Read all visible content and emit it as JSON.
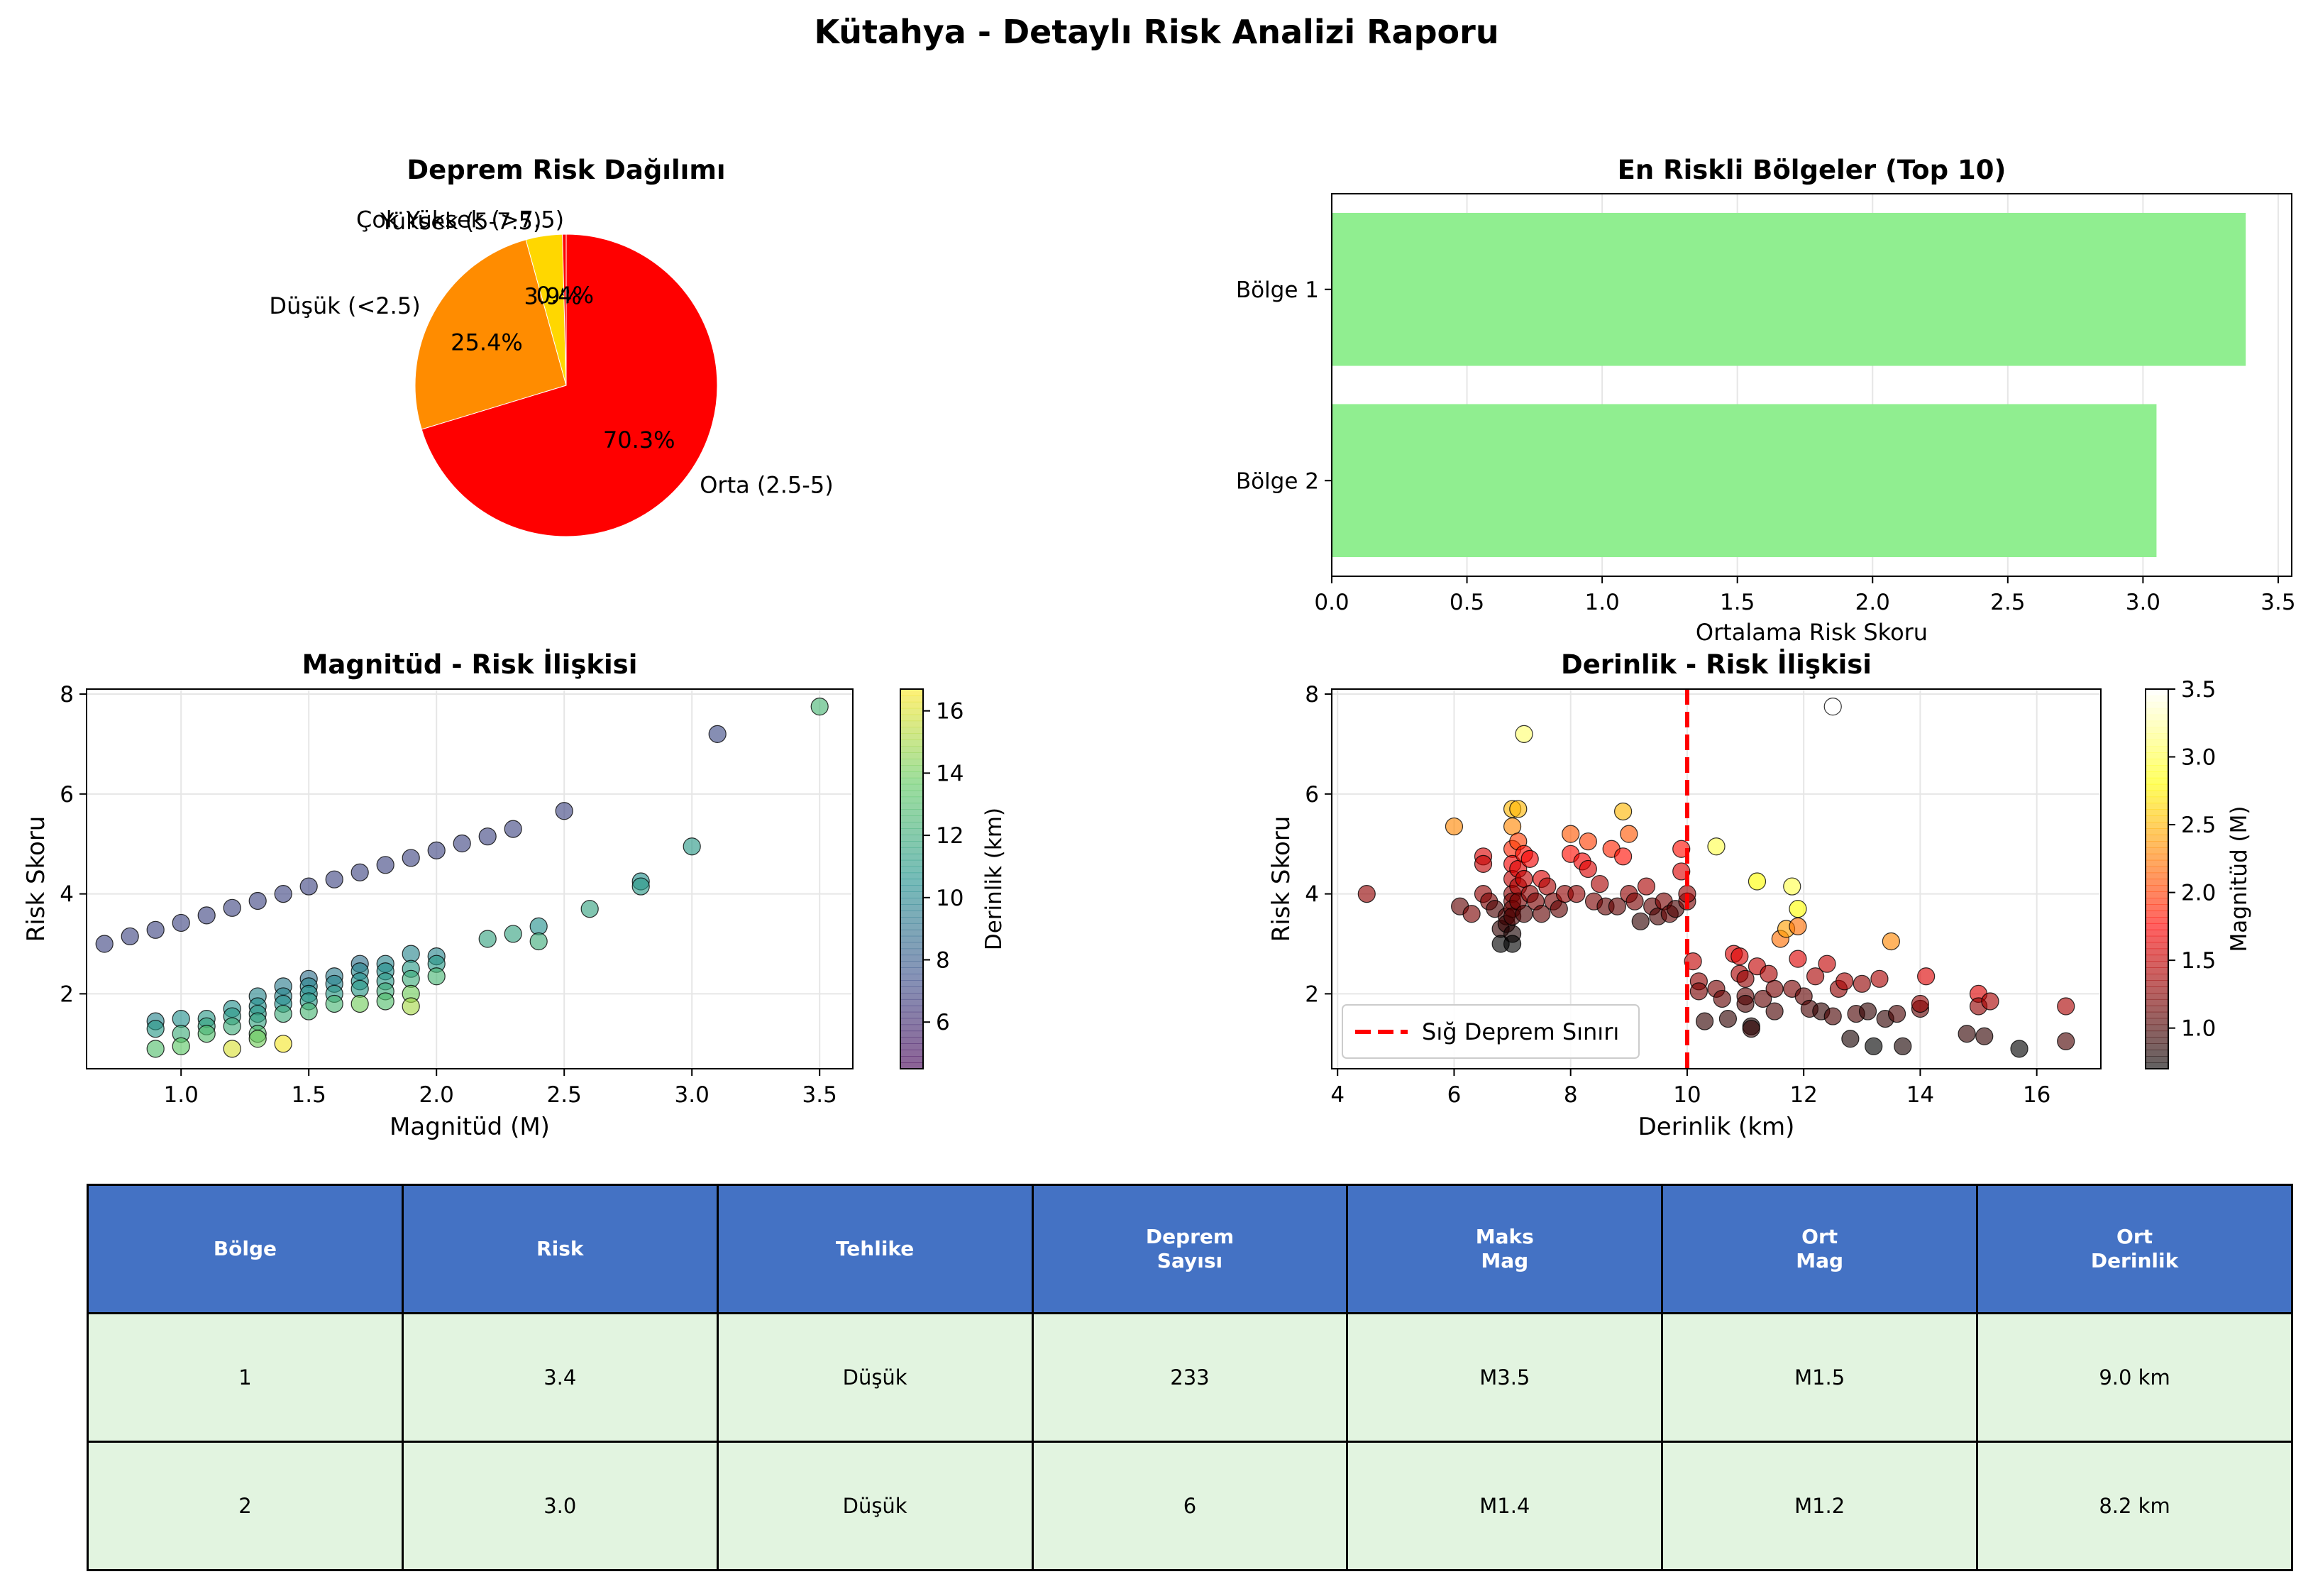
{
  "page": {
    "title": "Kütahya - Detaylı Risk Analizi Raporu"
  },
  "colors": {
    "pie": [
      "#ff0000",
      "#ff8c00",
      "#ffd700",
      "#ff0000"
    ],
    "bar": "#90ee90",
    "header": "#4472c4",
    "row": "#e2f4e0",
    "threshold": "#ff0000"
  },
  "chart_data": [
    {
      "type": "pie",
      "title": "Deprem Risk Dağılımı",
      "labels": [
        "Orta (2.5-5)",
        "Düşük (<2.5)",
        "Yüksek (5-7.5)",
        "Çok Yüksek (>7.5)"
      ],
      "values": [
        70.3,
        25.4,
        3.9,
        0.4
      ],
      "autopct": [
        "70.3%",
        "25.4%",
        "3.9%",
        "0.4%"
      ]
    },
    {
      "type": "bar",
      "orientation": "horizontal",
      "title": "En Riskli Bölgeler (Top 10)",
      "categories": [
        "Bölge 1",
        "Bölge 2"
      ],
      "values": [
        3.38,
        3.05
      ],
      "xlabel": "Ortalama Risk Skoru",
      "xlim": [
        0,
        3.55
      ],
      "xticks": [
        "0.0",
        "0.5",
        "1.0",
        "1.5",
        "2.0",
        "2.5",
        "3.0",
        "3.5"
      ],
      "grid": true
    },
    {
      "type": "scatter",
      "title": "Magnitüd - Risk İlişkisi",
      "xlabel": "Magnitüd (M)",
      "ylabel": "Risk Skoru",
      "xlim": [
        0.63,
        3.63
      ],
      "ylim": [
        0.5,
        8.1
      ],
      "xticks": [
        "1.0",
        "1.5",
        "2.0",
        "2.5",
        "3.0",
        "3.5"
      ],
      "yticks": [
        "2",
        "4",
        "6",
        "8"
      ],
      "colorbar": {
        "label": "Derinlik (km)",
        "min": 4.5,
        "max": 16.7,
        "ticks": [
          "6",
          "8",
          "10",
          "12",
          "14",
          "16"
        ],
        "colormap": "viridis"
      },
      "points": [
        [
          0.7,
          3.0,
          7
        ],
        [
          0.8,
          3.15,
          7
        ],
        [
          0.9,
          3.28,
          7
        ],
        [
          1.0,
          3.42,
          7
        ],
        [
          1.1,
          3.57,
          7
        ],
        [
          1.2,
          3.72,
          7
        ],
        [
          1.3,
          3.86,
          7
        ],
        [
          1.4,
          4.0,
          7
        ],
        [
          1.5,
          4.15,
          7
        ],
        [
          1.6,
          4.29,
          7
        ],
        [
          1.7,
          4.43,
          7
        ],
        [
          1.8,
          4.58,
          7
        ],
        [
          1.9,
          4.72,
          7
        ],
        [
          2.0,
          4.87,
          7
        ],
        [
          2.1,
          5.01,
          7
        ],
        [
          2.2,
          5.15,
          7
        ],
        [
          2.3,
          5.3,
          7
        ],
        [
          2.5,
          5.66,
          7
        ],
        [
          3.1,
          7.2,
          7.2
        ],
        [
          3.5,
          7.75,
          12.5
        ],
        [
          0.9,
          1.45,
          10
        ],
        [
          0.9,
          1.3,
          11
        ],
        [
          0.9,
          0.9,
          13
        ],
        [
          1.0,
          1.5,
          10.5
        ],
        [
          1.0,
          1.2,
          12
        ],
        [
          1.0,
          0.95,
          13.5
        ],
        [
          1.1,
          1.5,
          11
        ],
        [
          1.1,
          1.35,
          11.5
        ],
        [
          1.1,
          1.2,
          13
        ],
        [
          1.2,
          1.7,
          10.5
        ],
        [
          1.2,
          1.55,
          11
        ],
        [
          1.2,
          1.35,
          12
        ],
        [
          1.2,
          0.9,
          16
        ],
        [
          1.3,
          1.95,
          10
        ],
        [
          1.3,
          1.75,
          10.5
        ],
        [
          1.3,
          1.6,
          11
        ],
        [
          1.3,
          1.45,
          11.5
        ],
        [
          1.3,
          1.2,
          13
        ],
        [
          1.3,
          1.1,
          14
        ],
        [
          1.4,
          2.15,
          9.5
        ],
        [
          1.4,
          1.95,
          10
        ],
        [
          1.4,
          1.8,
          10.5
        ],
        [
          1.4,
          1.6,
          12
        ],
        [
          1.4,
          1.0,
          16.5
        ],
        [
          1.5,
          2.3,
          9
        ],
        [
          1.5,
          2.15,
          10
        ],
        [
          1.5,
          2.0,
          10.5
        ],
        [
          1.5,
          1.85,
          11
        ],
        [
          1.5,
          1.65,
          12.5
        ],
        [
          1.6,
          2.35,
          9.5
        ],
        [
          1.6,
          2.2,
          10
        ],
        [
          1.6,
          2.0,
          11
        ],
        [
          1.6,
          1.8,
          12.5
        ],
        [
          1.7,
          2.6,
          9
        ],
        [
          1.7,
          2.45,
          10
        ],
        [
          1.7,
          2.25,
          10.5
        ],
        [
          1.7,
          2.1,
          11
        ],
        [
          1.7,
          1.8,
          14
        ],
        [
          1.8,
          2.6,
          10
        ],
        [
          1.8,
          2.45,
          10.5
        ],
        [
          1.8,
          2.25,
          11
        ],
        [
          1.8,
          2.05,
          12
        ],
        [
          1.8,
          1.85,
          13
        ],
        [
          1.9,
          2.8,
          10
        ],
        [
          1.9,
          2.5,
          11
        ],
        [
          1.9,
          2.3,
          12
        ],
        [
          1.9,
          2.0,
          14
        ],
        [
          1.9,
          1.75,
          15
        ],
        [
          2.0,
          2.75,
          10
        ],
        [
          2.0,
          2.6,
          11
        ],
        [
          2.0,
          2.35,
          12.5
        ],
        [
          2.2,
          3.1,
          11.5
        ],
        [
          2.3,
          3.2,
          11.5
        ],
        [
          2.4,
          3.35,
          10.5
        ],
        [
          2.4,
          3.05,
          12
        ],
        [
          2.6,
          3.7,
          11.5
        ],
        [
          2.8,
          4.25,
          10.5
        ],
        [
          2.8,
          4.15,
          11
        ],
        [
          3.0,
          4.95,
          11
        ]
      ]
    },
    {
      "type": "scatter",
      "title": "Derinlik - Risk İlişkisi",
      "xlabel": "Derinlik (km)",
      "ylabel": "Risk Skoru",
      "xlim": [
        3.9,
        17.1
      ],
      "ylim": [
        0.5,
        8.1
      ],
      "xticks": [
        "4",
        "6",
        "8",
        "10",
        "12",
        "14",
        "16"
      ],
      "yticks": [
        "2",
        "4",
        "6",
        "8"
      ],
      "colorbar": {
        "label": "Magnitüd (M)",
        "min": 0.7,
        "max": 3.5,
        "ticks": [
          "1.0",
          "1.5",
          "2.0",
          "2.5",
          "3.0",
          "3.5"
        ],
        "colormap": "hot"
      },
      "threshold": {
        "x": 10,
        "label": "Sığ Deprem Sınırı"
      },
      "points": [
        [
          4.5,
          4.0,
          1.3
        ],
        [
          6.0,
          5.35,
          2.3
        ],
        [
          6.1,
          3.75,
          1.1
        ],
        [
          6.3,
          3.6,
          1.2
        ],
        [
          6.5,
          4.0,
          1.3
        ],
        [
          6.5,
          4.75,
          1.6
        ],
        [
          6.5,
          4.6,
          1.5
        ],
        [
          6.6,
          3.85,
          1.2
        ],
        [
          6.7,
          3.7,
          1.0
        ],
        [
          6.8,
          3.3,
          0.9
        ],
        [
          6.8,
          3.0,
          0.7
        ],
        [
          6.9,
          3.55,
          1.0
        ],
        [
          6.9,
          3.4,
          0.9
        ],
        [
          7.0,
          5.7,
          2.5
        ],
        [
          7.0,
          5.35,
          2.3
        ],
        [
          7.0,
          4.9,
          1.9
        ],
        [
          7.0,
          4.6,
          1.7
        ],
        [
          7.0,
          4.3,
          1.5
        ],
        [
          7.0,
          4.0,
          1.3
        ],
        [
          7.0,
          3.85,
          1.2
        ],
        [
          7.0,
          3.7,
          1.1
        ],
        [
          7.0,
          3.55,
          1.0
        ],
        [
          7.0,
          3.2,
          0.8
        ],
        [
          7.0,
          3.0,
          0.7
        ],
        [
          7.1,
          5.7,
          2.5
        ],
        [
          7.1,
          5.05,
          2.0
        ],
        [
          7.1,
          4.5,
          1.6
        ],
        [
          7.1,
          4.15,
          1.4
        ],
        [
          7.1,
          3.85,
          1.2
        ],
        [
          7.2,
          4.8,
          1.8
        ],
        [
          7.2,
          4.3,
          1.5
        ],
        [
          7.2,
          3.6,
          1.0
        ],
        [
          7.2,
          7.2,
          3.1
        ],
        [
          7.3,
          4.7,
          1.7
        ],
        [
          7.3,
          4.0,
          1.3
        ],
        [
          7.4,
          3.85,
          1.2
        ],
        [
          7.5,
          4.3,
          1.6
        ],
        [
          7.5,
          3.6,
          1.1
        ],
        [
          7.6,
          4.15,
          1.4
        ],
        [
          7.7,
          3.85,
          1.2
        ],
        [
          7.8,
          3.7,
          1.1
        ],
        [
          7.9,
          4.0,
          1.3
        ],
        [
          8.0,
          5.2,
          2.1
        ],
        [
          8.0,
          4.8,
          1.8
        ],
        [
          8.1,
          4.0,
          1.3
        ],
        [
          8.2,
          4.65,
          1.7
        ],
        [
          8.3,
          5.05,
          2.0
        ],
        [
          8.3,
          4.5,
          1.6
        ],
        [
          8.4,
          3.85,
          1.2
        ],
        [
          8.5,
          4.2,
          1.4
        ],
        [
          8.6,
          3.75,
          1.1
        ],
        [
          8.7,
          4.9,
          1.9
        ],
        [
          8.8,
          3.75,
          1.1
        ],
        [
          8.9,
          4.75,
          1.8
        ],
        [
          8.9,
          5.65,
          2.5
        ],
        [
          9.0,
          5.2,
          2.1
        ],
        [
          9.0,
          4.0,
          1.3
        ],
        [
          9.1,
          3.85,
          1.2
        ],
        [
          9.2,
          3.45,
          0.9
        ],
        [
          9.3,
          4.15,
          1.4
        ],
        [
          9.4,
          3.75,
          1.1
        ],
        [
          9.5,
          3.55,
          1.0
        ],
        [
          9.6,
          3.85,
          1.2
        ],
        [
          9.7,
          3.6,
          1.1
        ],
        [
          9.8,
          3.7,
          1.0
        ],
        [
          9.9,
          4.45,
          1.6
        ],
        [
          9.9,
          4.9,
          1.8
        ],
        [
          10.0,
          3.85,
          1.2
        ],
        [
          10.0,
          4.0,
          1.3
        ],
        [
          10.1,
          2.65,
          1.5
        ],
        [
          10.2,
          2.25,
          1.3
        ],
        [
          10.2,
          2.05,
          1.2
        ],
        [
          10.3,
          1.45,
          0.9
        ],
        [
          10.5,
          4.95,
          3.0
        ],
        [
          10.5,
          2.1,
          1.2
        ],
        [
          10.6,
          1.9,
          1.1
        ],
        [
          10.7,
          1.5,
          0.9
        ],
        [
          10.8,
          2.8,
          1.6
        ],
        [
          10.9,
          2.75,
          1.6
        ],
        [
          10.9,
          2.4,
          1.4
        ],
        [
          11.0,
          2.3,
          1.3
        ],
        [
          11.0,
          1.95,
          1.1
        ],
        [
          11.0,
          1.8,
          1.0
        ],
        [
          11.1,
          1.35,
          0.8
        ],
        [
          11.1,
          1.3,
          0.9
        ],
        [
          11.2,
          4.25,
          2.8
        ],
        [
          11.2,
          2.55,
          1.5
        ],
        [
          11.3,
          1.9,
          1.1
        ],
        [
          11.4,
          2.4,
          1.4
        ],
        [
          11.5,
          2.1,
          1.2
        ],
        [
          11.5,
          1.65,
          1.0
        ],
        [
          11.6,
          3.1,
          2.2
        ],
        [
          11.7,
          3.3,
          2.4
        ],
        [
          11.8,
          4.15,
          3.0
        ],
        [
          11.8,
          2.1,
          1.2
        ],
        [
          11.9,
          3.35,
          2.2
        ],
        [
          11.9,
          3.7,
          2.8
        ],
        [
          11.9,
          2.7,
          1.6
        ],
        [
          12.0,
          1.95,
          1.1
        ],
        [
          12.1,
          1.7,
          1.0
        ],
        [
          12.2,
          2.35,
          1.4
        ],
        [
          12.3,
          1.65,
          0.9
        ],
        [
          12.4,
          2.6,
          1.5
        ],
        [
          12.5,
          1.55,
          1.0
        ],
        [
          12.5,
          7.75,
          3.5
        ],
        [
          12.6,
          2.1,
          1.3
        ],
        [
          12.7,
          2.25,
          1.4
        ],
        [
          12.8,
          1.1,
          0.8
        ],
        [
          12.9,
          1.6,
          1.0
        ],
        [
          13.0,
          2.2,
          1.3
        ],
        [
          13.1,
          1.65,
          0.9
        ],
        [
          13.2,
          0.95,
          0.7
        ],
        [
          13.3,
          2.3,
          1.4
        ],
        [
          13.4,
          1.5,
          0.9
        ],
        [
          13.5,
          3.05,
          2.3
        ],
        [
          13.6,
          1.6,
          1.0
        ],
        [
          13.7,
          0.95,
          0.8
        ],
        [
          14.0,
          1.7,
          1.1
        ],
        [
          14.0,
          1.8,
          1.3
        ],
        [
          14.1,
          2.35,
          1.6
        ],
        [
          14.8,
          1.2,
          0.9
        ],
        [
          15.0,
          2.0,
          1.6
        ],
        [
          15.0,
          1.75,
          1.3
        ],
        [
          15.1,
          1.15,
          0.9
        ],
        [
          15.2,
          1.85,
          1.4
        ],
        [
          15.7,
          0.9,
          0.7
        ],
        [
          16.5,
          1.75,
          1.4
        ],
        [
          16.5,
          1.05,
          1.0
        ]
      ]
    }
  ],
  "table": {
    "headers": [
      "Bölge",
      "Risk",
      "Tehlike",
      "Deprem\nSayısı",
      "Maks\nMag",
      "Ort\nMag",
      "Ort\nDerinlik"
    ],
    "rows": [
      [
        "1",
        "3.4",
        "Düşük",
        "233",
        "M3.5",
        "M1.5",
        "9.0 km"
      ],
      [
        "2",
        "3.0",
        "Düşük",
        "6",
        "M1.4",
        "M1.2",
        "8.2 km"
      ]
    ]
  }
}
